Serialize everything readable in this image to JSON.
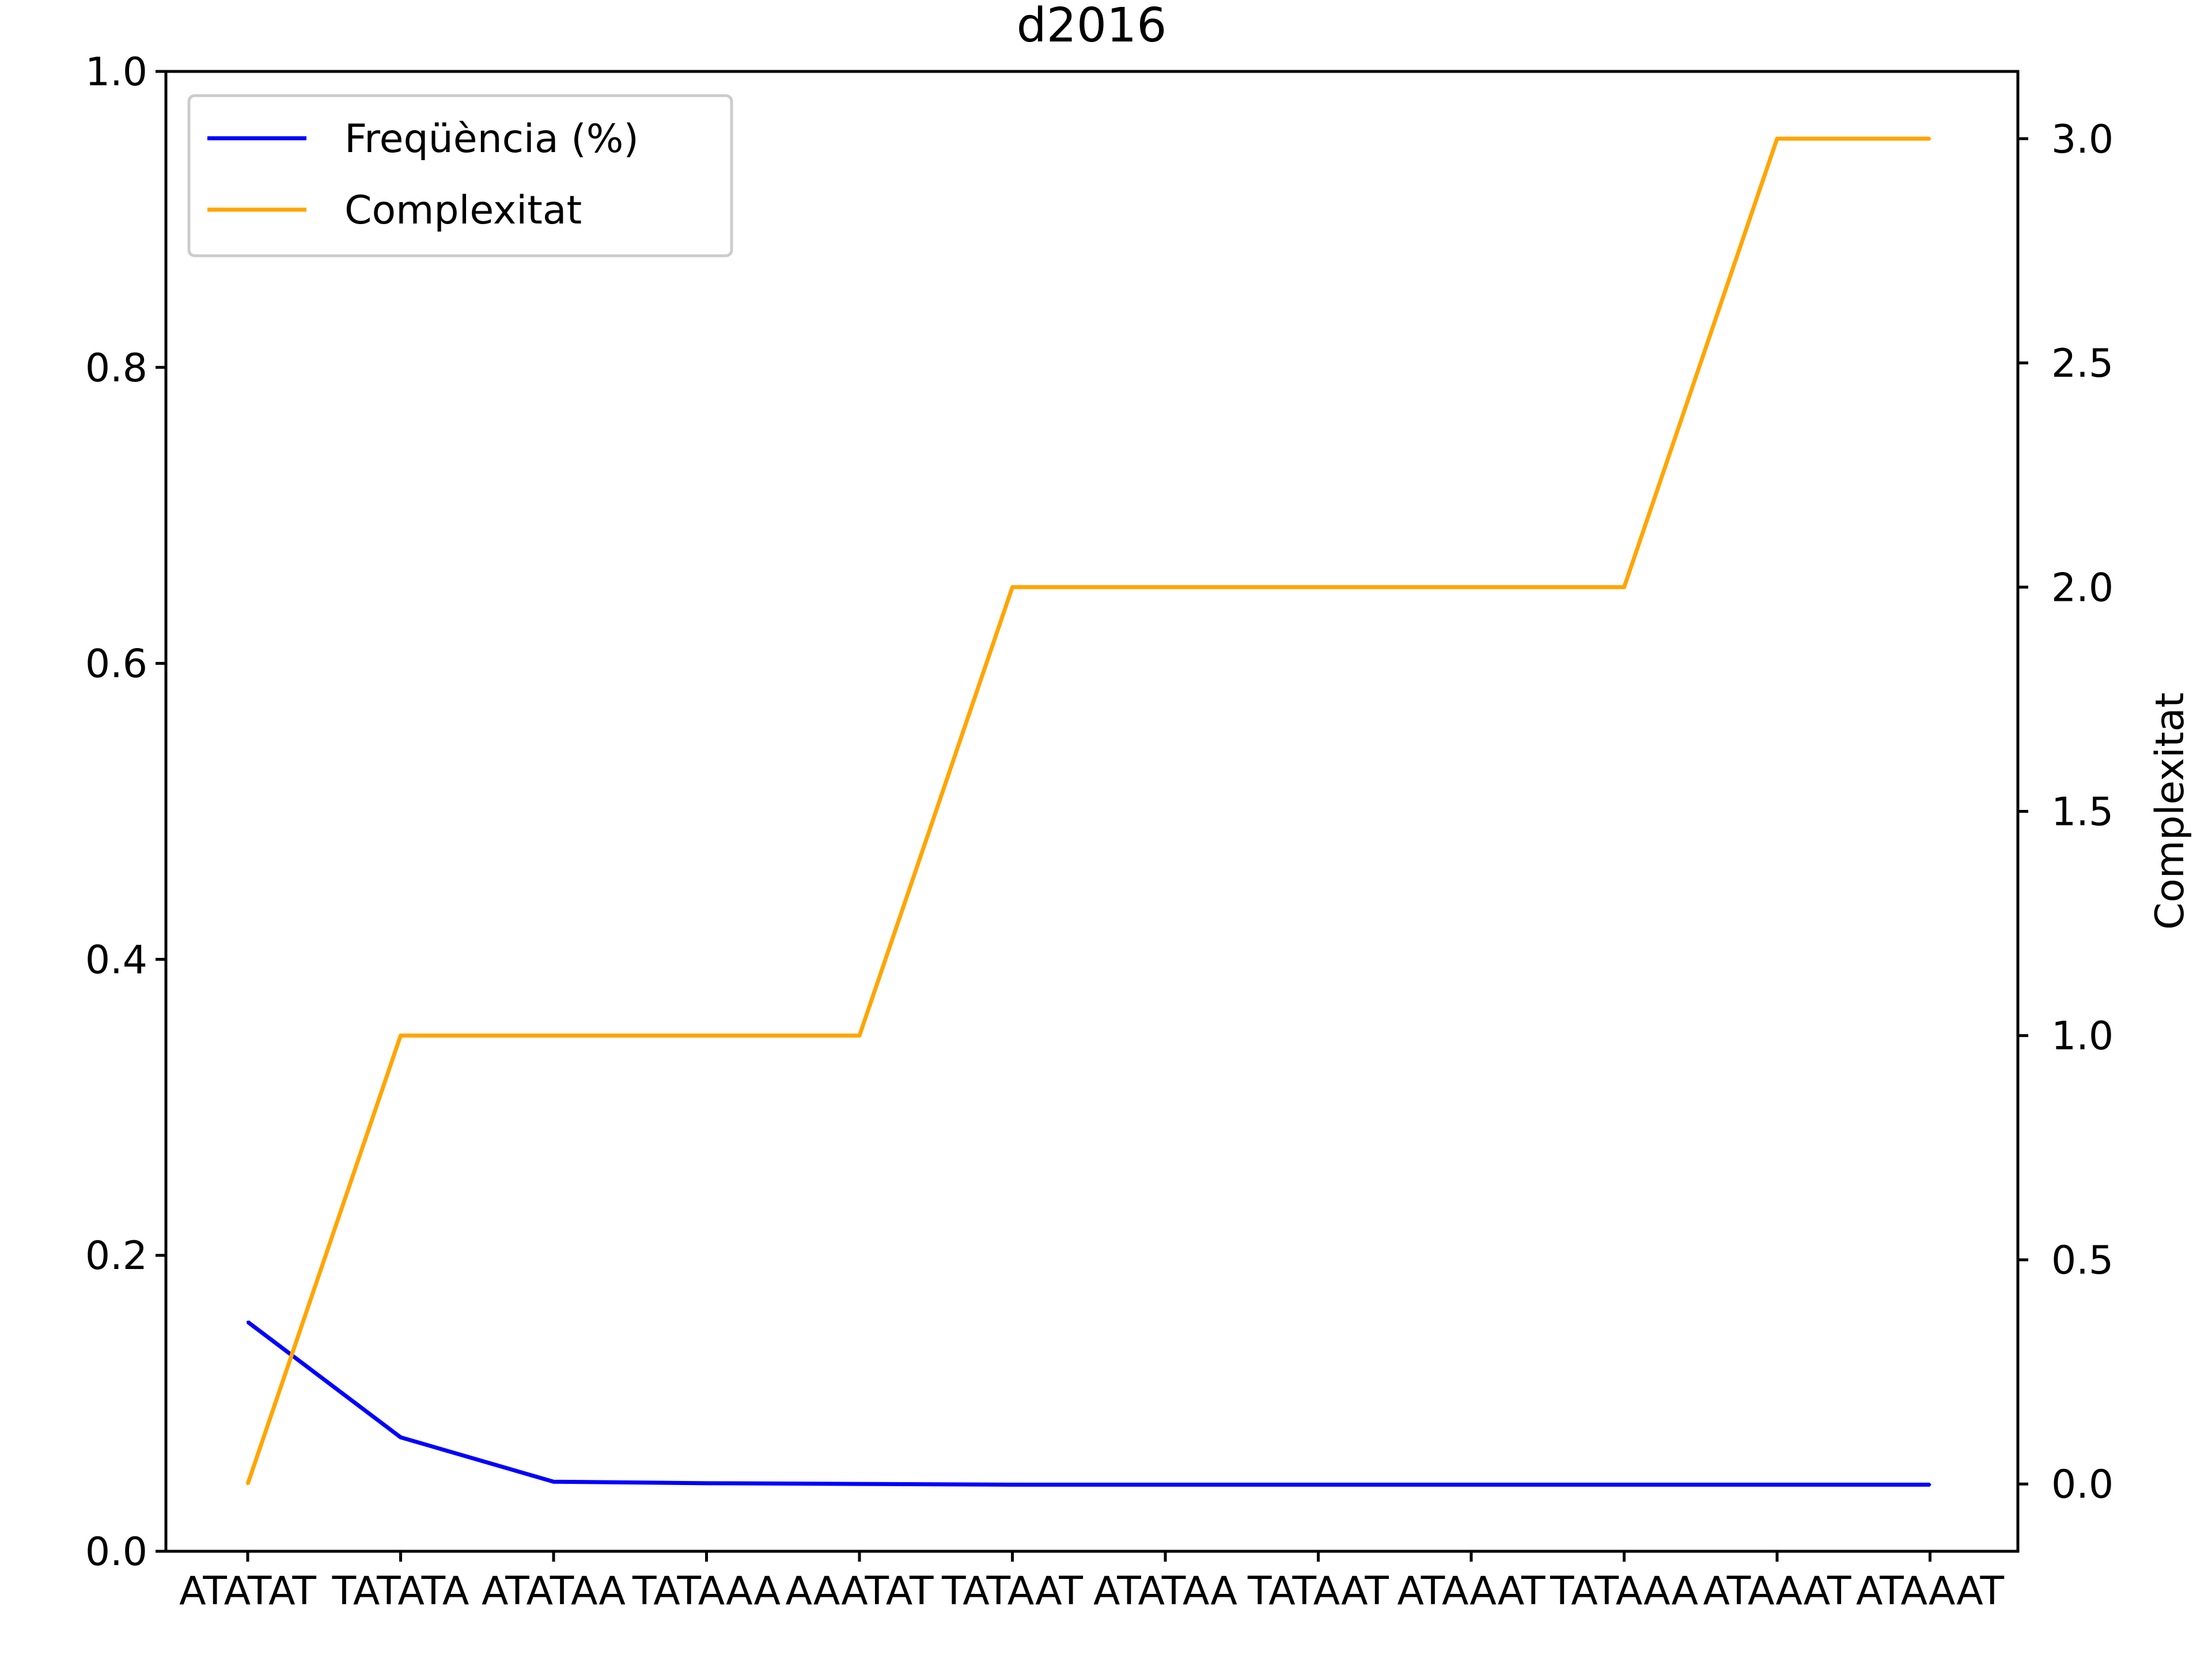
{
  "chart_data": {
    "type": "line",
    "title": "d2016",
    "xlabel": "",
    "ylabel_left": "",
    "ylabel_right": "Complexitat",
    "categories": [
      "ATATAT",
      "TATATA",
      "ATATAA",
      "TATAAA",
      "AAATAT",
      "TATAAT",
      "ATATAA",
      "TATAAT",
      "ATAAAT",
      "TATAAA",
      "ATAAAT",
      "ATAAAT"
    ],
    "xtick_labels": [
      "ATATAT",
      "TATATA",
      "ATATAA",
      "TATAAA",
      "AAATAT",
      "TATAAT",
      "ATATAA",
      "TATAAT",
      "ATAAAT",
      "TATAAA",
      "ATAAAT",
      "ATAAAT"
    ],
    "ylim_left": [
      0,
      1
    ],
    "ylim_right": [
      -0.15,
      3.15
    ],
    "yticks_left": [
      "0.0",
      "0.2",
      "0.4",
      "0.6",
      "0.8",
      "1.0"
    ],
    "yticks_right": [
      "0.0",
      "0.5",
      "1.0",
      "1.5",
      "2.0",
      "2.5",
      "3.0"
    ],
    "grid": false,
    "legend_position": "top-left",
    "series": [
      {
        "name": "Freqüència (%)",
        "axis": "left",
        "color": "#0000ff",
        "values": [
          0.155,
          0.077,
          0.047,
          0.046,
          0.0455,
          0.045,
          0.045,
          0.045,
          0.045,
          0.045,
          0.045,
          0.045
        ]
      },
      {
        "name": "Complexitat",
        "axis": "right",
        "color": "#ffa500",
        "values": [
          0,
          1,
          1,
          1,
          1,
          2,
          2,
          2,
          2,
          2,
          3,
          3
        ]
      }
    ]
  }
}
